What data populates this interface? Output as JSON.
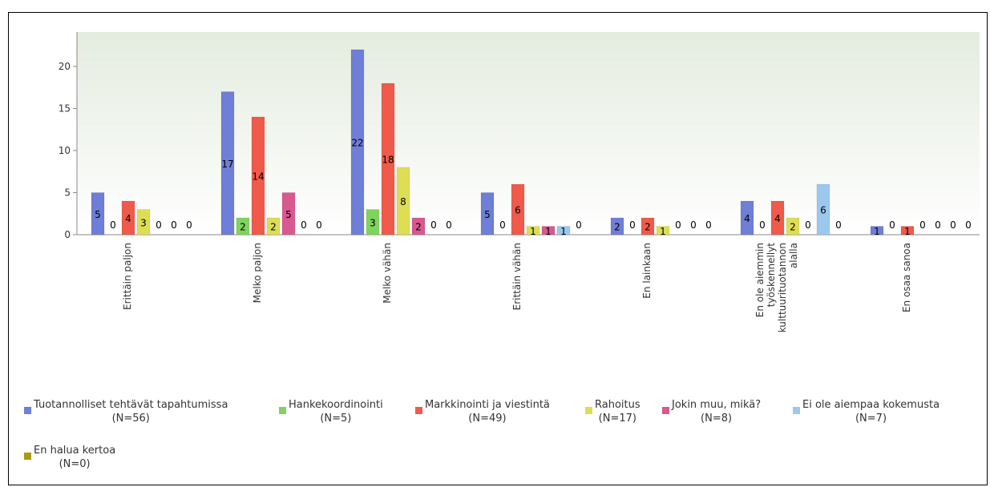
{
  "chart_data": {
    "type": "bar",
    "categories": [
      "Erittäin paljon",
      "Melko paljon",
      "Melko vähän",
      "Erittäin vähän",
      "En lainkaan",
      "En ole aiemmin työskennellyt kulttuurituotannon alalla",
      "En osaa sanoa"
    ],
    "series": [
      {
        "name": "Tuotannolliset tehtävät tapahtumissa",
        "n": "(N=56)",
        "color": "#6f7ed6",
        "values": [
          5,
          17,
          22,
          5,
          2,
          4,
          1
        ]
      },
      {
        "name": "Hankekoordinointi",
        "n": "(N=5)",
        "color": "#7fd45f",
        "values": [
          0,
          2,
          3,
          0,
          0,
          0,
          0
        ]
      },
      {
        "name": "Markkinointi ja viestintä",
        "n": "(N=49)",
        "color": "#ef5a4b",
        "values": [
          4,
          14,
          18,
          6,
          2,
          4,
          1
        ]
      },
      {
        "name": "Rahoitus",
        "n": "(N=17)",
        "color": "#dede55",
        "values": [
          3,
          2,
          8,
          1,
          1,
          2,
          0
        ]
      },
      {
        "name": "Jokin muu, mikä?",
        "n": "(N=8)",
        "color": "#d9588f",
        "values": [
          0,
          5,
          2,
          1,
          0,
          0,
          0
        ]
      },
      {
        "name": "Ei ole aiempaa kokemusta",
        "n": "(N=7)",
        "color": "#9cc8ee",
        "values": [
          0,
          0,
          0,
          1,
          0,
          6,
          0
        ]
      },
      {
        "name": "En halua kertoa",
        "n": "(N=0)",
        "color": "#a89a15",
        "values": [
          0,
          0,
          0,
          0,
          0,
          0,
          0
        ]
      }
    ],
    "ylim": [
      0,
      24
    ],
    "yticks": [
      0,
      5,
      10,
      15,
      20
    ],
    "grid": false,
    "legend_position": "bottom"
  }
}
